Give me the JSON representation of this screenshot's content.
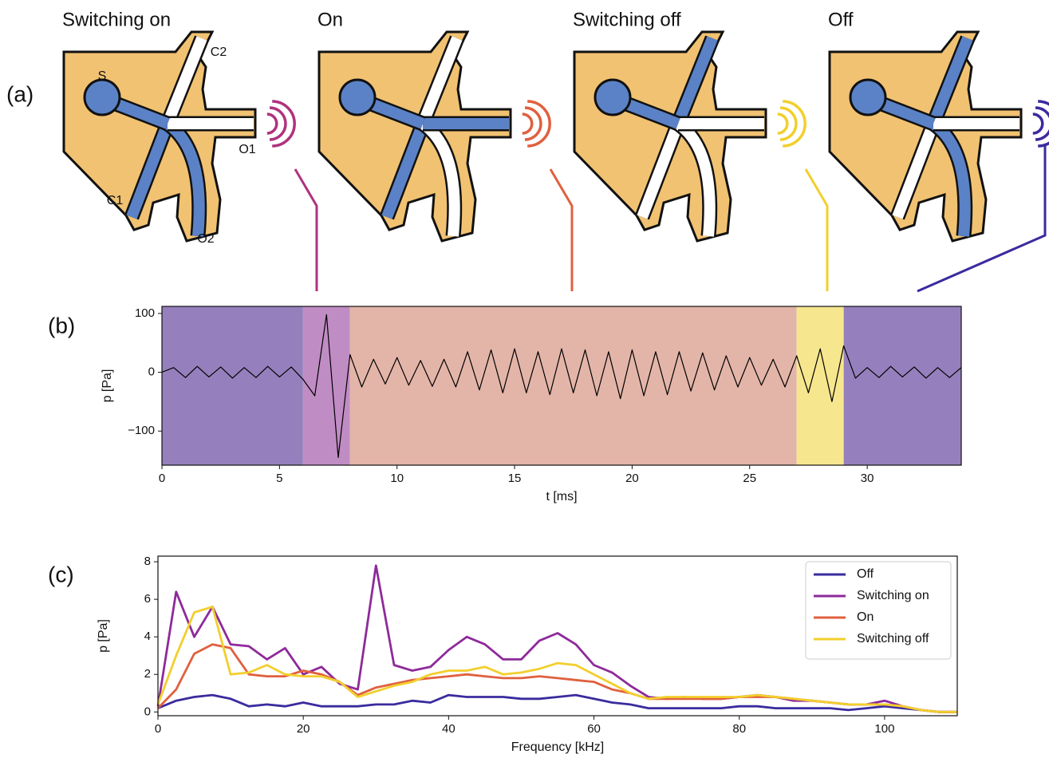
{
  "panel_labels": [
    "(a)",
    "(b)",
    "(c)"
  ],
  "diagram": {
    "states": [
      "Switching on",
      "On",
      "Switching off",
      "Off"
    ],
    "ports": [
      "S",
      "C1",
      "C2",
      "O1",
      "O2"
    ]
  },
  "chart_data": [
    {
      "type": "line",
      "xlabel": "t [ms]",
      "ylabel": "p [Pa]",
      "xlim": [
        0,
        34
      ],
      "ylim": [
        -158,
        112
      ],
      "xticks": [
        0,
        5,
        10,
        15,
        20,
        25,
        30
      ],
      "yticks": [
        {
          "value": -100,
          "label": "−100"
        },
        0,
        100
      ],
      "regions": [
        {
          "start": 0,
          "end": 6,
          "color": "#9580bd"
        },
        {
          "start": 6,
          "end": 8,
          "color": "#c08cc4"
        },
        {
          "start": 8,
          "end": 27,
          "color": "#e3b5a8"
        },
        {
          "start": 27,
          "end": 29,
          "color": "#f6e68e"
        },
        {
          "start": 29,
          "end": 34,
          "color": "#9580bd"
        }
      ],
      "color": "#000000",
      "x": [
        0,
        0.5,
        1,
        1.5,
        2,
        2.5,
        3,
        3.5,
        4,
        4.5,
        5,
        5.5,
        6,
        6.5,
        7,
        7.5,
        8,
        8.5,
        9,
        9.5,
        10,
        10.5,
        11,
        11.5,
        12,
        12.5,
        13,
        13.5,
        14,
        14.5,
        15,
        15.5,
        16,
        16.5,
        17,
        17.5,
        18,
        18.5,
        19,
        19.5,
        20,
        20.5,
        21,
        21.5,
        22,
        22.5,
        23,
        23.5,
        24,
        24.5,
        25,
        25.5,
        26,
        26.5,
        27,
        27.5,
        28,
        28.5,
        29,
        29.5,
        30,
        30.5,
        31,
        31.5,
        32,
        32.5,
        33,
        33.5,
        34
      ],
      "values": [
        0,
        8,
        -9,
        10,
        -8,
        9,
        -10,
        8,
        -9,
        10,
        -8,
        9,
        -12,
        -40,
        98,
        -145,
        30,
        -25,
        22,
        -20,
        25,
        -22,
        20,
        -24,
        22,
        -25,
        35,
        -30,
        38,
        -35,
        40,
        -35,
        35,
        -38,
        40,
        -35,
        38,
        -40,
        35,
        -45,
        38,
        -40,
        35,
        -38,
        35,
        -32,
        33,
        -30,
        28,
        -25,
        25,
        -22,
        22,
        -25,
        28,
        -35,
        40,
        -50,
        45,
        -10,
        8,
        -9,
        10,
        -8,
        9,
        -10,
        8,
        -9,
        8
      ]
    },
    {
      "type": "line",
      "xlabel": "Frequency [kHz]",
      "ylabel": "p [Pa]",
      "xlim": [
        0,
        110
      ],
      "ylim": [
        -0.2,
        8.3
      ],
      "xticks": [
        0,
        20,
        40,
        60,
        80,
        100
      ],
      "yticks": [
        0,
        2,
        4,
        6,
        8
      ],
      "legend": "upper right",
      "x": [
        0,
        2.5,
        5,
        7.5,
        10,
        12.5,
        15,
        17.5,
        20,
        22.5,
        25,
        27.5,
        30,
        32.5,
        35,
        37.5,
        40,
        42.5,
        45,
        47.5,
        50,
        52.5,
        55,
        57.5,
        60,
        62.5,
        65,
        67.5,
        70,
        72.5,
        75,
        77.5,
        80,
        82.5,
        85,
        87.5,
        90,
        92.5,
        95,
        97.5,
        100,
        102.5,
        105,
        107.5,
        110
      ],
      "series": [
        {
          "name": "Off",
          "color": "#3a2b9e",
          "values": [
            0.2,
            0.6,
            0.8,
            0.9,
            0.7,
            0.3,
            0.4,
            0.3,
            0.5,
            0.3,
            0.3,
            0.3,
            0.4,
            0.4,
            0.6,
            0.5,
            0.9,
            0.8,
            0.8,
            0.8,
            0.7,
            0.7,
            0.8,
            0.9,
            0.7,
            0.5,
            0.4,
            0.2,
            0.2,
            0.2,
            0.2,
            0.2,
            0.3,
            0.3,
            0.2,
            0.2,
            0.2,
            0.2,
            0.1,
            0.2,
            0.3,
            0.2,
            0.1,
            0.0,
            0.0
          ]
        },
        {
          "name": "Switching on",
          "color": "#8e2a9a",
          "values": [
            0.3,
            6.4,
            4.0,
            5.6,
            3.6,
            3.5,
            2.8,
            3.4,
            2.0,
            2.4,
            1.5,
            1.2,
            7.8,
            2.5,
            2.2,
            2.4,
            3.3,
            4.0,
            3.6,
            2.8,
            2.8,
            3.8,
            4.2,
            3.6,
            2.5,
            2.1,
            1.4,
            0.8,
            0.7,
            0.8,
            0.7,
            0.7,
            0.8,
            0.9,
            0.8,
            0.6,
            0.6,
            0.5,
            0.4,
            0.4,
            0.6,
            0.3,
            0.1,
            0.0,
            0.0
          ]
        },
        {
          "name": "On",
          "color": "#e0603f",
          "values": [
            0.2,
            1.2,
            3.1,
            3.6,
            3.4,
            2.0,
            1.9,
            1.9,
            2.2,
            2.0,
            1.6,
            0.9,
            1.3,
            1.5,
            1.7,
            1.8,
            1.9,
            2.0,
            1.9,
            1.8,
            1.8,
            1.9,
            1.8,
            1.7,
            1.6,
            1.2,
            1.0,
            0.7,
            0.7,
            0.7,
            0.7,
            0.7,
            0.8,
            0.8,
            0.8,
            0.7,
            0.6,
            0.5,
            0.4,
            0.4,
            0.4,
            0.3,
            0.1,
            0.0,
            0.0
          ]
        },
        {
          "name": "Switching off",
          "color": "#f2cf2c",
          "values": [
            0.4,
            3.0,
            5.3,
            5.6,
            2.0,
            2.1,
            2.5,
            2.0,
            1.9,
            1.9,
            1.6,
            0.8,
            1.1,
            1.4,
            1.6,
            2.0,
            2.2,
            2.2,
            2.4,
            2.0,
            2.1,
            2.3,
            2.6,
            2.5,
            2.0,
            1.5,
            1.0,
            0.7,
            0.8,
            0.8,
            0.8,
            0.8,
            0.8,
            0.9,
            0.8,
            0.7,
            0.6,
            0.5,
            0.4,
            0.4,
            0.4,
            0.3,
            0.1,
            0.0,
            0.0
          ]
        }
      ]
    }
  ]
}
